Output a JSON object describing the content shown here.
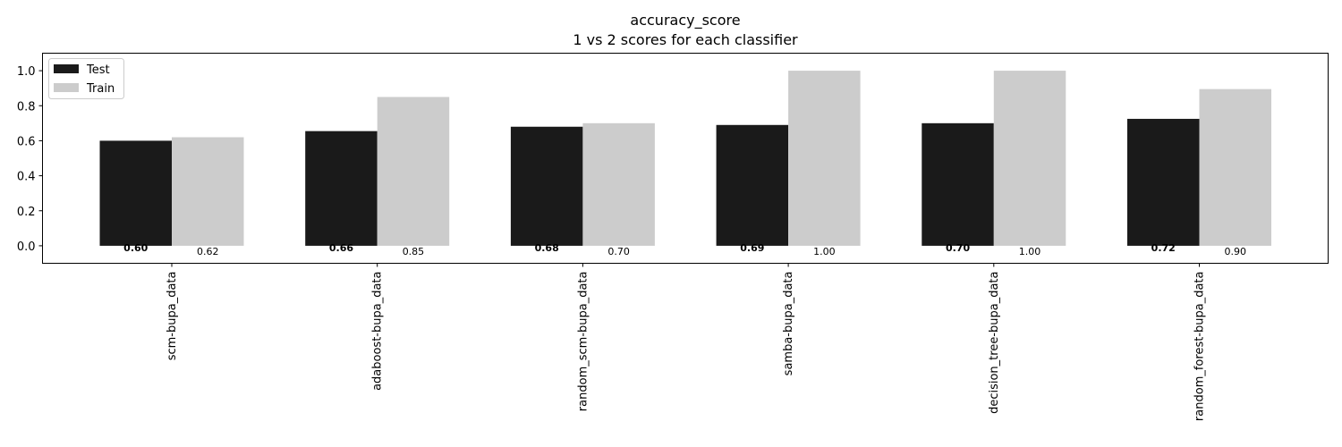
{
  "chart_data": {
    "type": "bar",
    "title": "accuracy_score",
    "subtitle": "1 vs 2 scores for each classifier",
    "categories": [
      "scm-bupa_data",
      "adaboost-bupa_data",
      "random_scm-bupa_data",
      "samba-bupa_data",
      "decision_tree-bupa_data",
      "random_forest-bupa_data"
    ],
    "series": [
      {
        "name": "Test",
        "color": "#1a1a1a",
        "values": [
          0.6,
          0.655,
          0.68,
          0.69,
          0.7,
          0.725
        ],
        "labels": [
          "0.60",
          "0.66",
          "0.68",
          "0.69",
          "0.70",
          "0.72"
        ]
      },
      {
        "name": "Train",
        "color": "#cccccc",
        "values": [
          0.62,
          0.85,
          0.7,
          1.0,
          1.0,
          0.895
        ],
        "labels": [
          "0.62",
          "0.85",
          "0.70",
          "1.00",
          "1.00",
          "0.90"
        ]
      }
    ],
    "yticks": [
      "0.0",
      "0.2",
      "0.4",
      "0.6",
      "0.8",
      "1.0"
    ],
    "ylim": [
      -0.1,
      1.1
    ],
    "legend_position": "top-left",
    "grid": false
  }
}
